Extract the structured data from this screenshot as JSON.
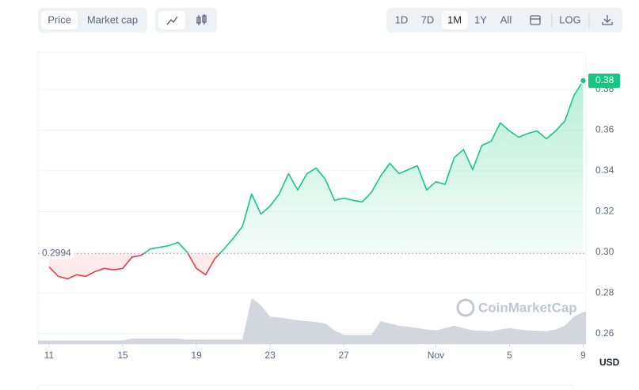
{
  "toolbar": {
    "metric_tabs": [
      "Price",
      "Market cap"
    ],
    "active_metric": "Price",
    "ranges": [
      "1D",
      "7D",
      "1M",
      "1Y",
      "All"
    ],
    "active_range": "1M",
    "log": "LOG"
  },
  "chart_data": {
    "type": "line",
    "x": [
      0,
      0.5,
      1,
      1.5,
      2,
      2.5,
      3,
      3.5,
      4,
      4.5,
      5,
      5.5,
      6,
      6.5,
      7,
      7.5,
      8,
      8.5,
      9,
      9.5,
      10,
      10.5,
      11,
      11.5,
      12,
      12.5,
      13,
      13.5,
      14,
      14.5,
      15,
      15.5,
      16,
      16.5,
      17,
      17.5,
      18,
      18.5,
      19,
      19.5,
      20,
      20.5,
      21,
      21.5,
      22,
      22.5,
      23,
      23.5,
      24,
      24.5,
      25,
      25.5,
      26,
      26.5,
      27,
      27.5,
      28,
      28.5,
      29
    ],
    "series": [
      {
        "name": "Price",
        "values": [
          0.2928,
          0.2881,
          0.2869,
          0.2889,
          0.2881,
          0.2905,
          0.292,
          0.2913,
          0.292,
          0.2976,
          0.2984,
          0.3016,
          0.3024,
          0.3032,
          0.3048,
          0.3,
          0.292,
          0.2889,
          0.2968,
          0.3016,
          0.3068,
          0.3127,
          0.3286,
          0.3187,
          0.3227,
          0.3286,
          0.3386,
          0.3306,
          0.3386,
          0.3414,
          0.3358,
          0.3255,
          0.3266,
          0.3255,
          0.3247,
          0.3294,
          0.3374,
          0.3437,
          0.3386,
          0.3406,
          0.3425,
          0.3306,
          0.3346,
          0.3334,
          0.3465,
          0.3505,
          0.3406,
          0.3525,
          0.3545,
          0.3636,
          0.3596,
          0.3565,
          0.3584,
          0.3596,
          0.3557,
          0.3596,
          0.3644,
          0.3771,
          0.3843
        ]
      },
      {
        "name": "Volume",
        "values": [
          8,
          8,
          8,
          8,
          8,
          8,
          8,
          8,
          8,
          12,
          12,
          12,
          12,
          12,
          12,
          10,
          10,
          10,
          10,
          10,
          10,
          10,
          100,
          85,
          60,
          58,
          55,
          52,
          50,
          48,
          45,
          30,
          20,
          20,
          20,
          20,
          50,
          45,
          40,
          38,
          35,
          32,
          30,
          35,
          40,
          35,
          30,
          29,
          28,
          32,
          35,
          32,
          30,
          29,
          28,
          32,
          40,
          60,
          70
        ],
        "color": "#c7ccd4"
      }
    ],
    "up_color": "#16c784",
    "down_color": "#ea3943",
    "baseline": {
      "value": 0.2994,
      "label": "0.2994"
    },
    "price_tag": "0.38",
    "xlim": [
      -0.6,
      29.15
    ],
    "xticks": [
      {
        "value": 0,
        "label": "11"
      },
      {
        "value": 4,
        "label": "15"
      },
      {
        "value": 8,
        "label": "19"
      },
      {
        "value": 12,
        "label": "23"
      },
      {
        "value": 16,
        "label": "27"
      },
      {
        "value": 21,
        "label": "Nov"
      },
      {
        "value": 25,
        "label": "5"
      },
      {
        "value": 29,
        "label": "9"
      }
    ],
    "ylim": [
      0.2548,
      0.3983
    ],
    "yticks": [
      0.26,
      0.28,
      {
        "value": 0.3,
        "label": "0.30"
      },
      0.32,
      0.34,
      0.36,
      0.38
    ],
    "grid": true,
    "currency_label": "USD",
    "watermark": "CoinMarketCap"
  }
}
